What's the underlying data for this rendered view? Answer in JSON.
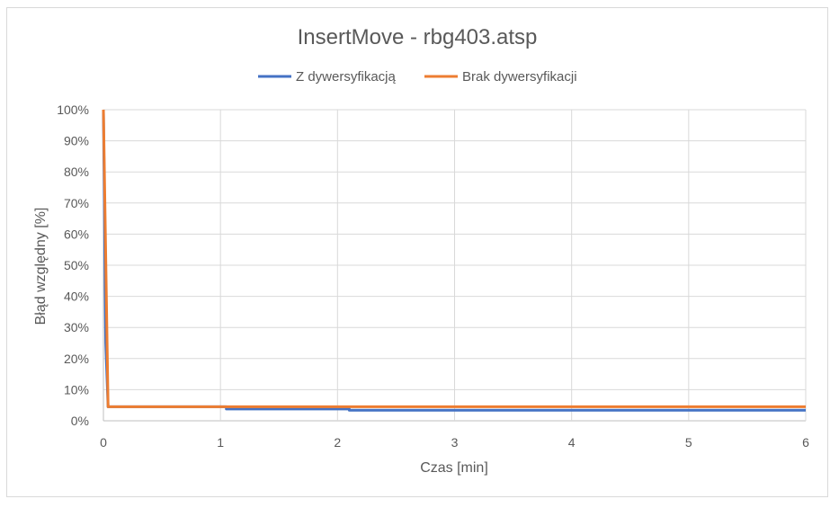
{
  "chart_data": {
    "type": "line",
    "title": "InsertMove - rbg403.atsp",
    "xlabel": "Czas [min]",
    "ylabel": "Błąd względny [%]",
    "xlim": [
      0,
      6
    ],
    "ylim": [
      0,
      100
    ],
    "x_ticks": [
      "0",
      "1",
      "2",
      "3",
      "4",
      "5",
      "6"
    ],
    "y_ticks": [
      "0%",
      "10%",
      "20%",
      "30%",
      "40%",
      "50%",
      "60%",
      "70%",
      "80%",
      "90%",
      "100%"
    ],
    "grid": true,
    "legend_position": "top",
    "series": [
      {
        "name": "Z dywersyfikacją",
        "color": "#4472c4",
        "points": [
          [
            0,
            100
          ],
          [
            0.02,
            25
          ],
          [
            0.04,
            4.5
          ],
          [
            1.05,
            4.5
          ],
          [
            1.05,
            3.8
          ],
          [
            2.1,
            3.8
          ],
          [
            2.1,
            3.4
          ],
          [
            6,
            3.4
          ]
        ]
      },
      {
        "name": "Brak dywersyfikacji",
        "color": "#ed7d31",
        "points": [
          [
            0,
            100
          ],
          [
            0.04,
            4.5
          ],
          [
            6,
            4.5
          ]
        ]
      }
    ]
  }
}
